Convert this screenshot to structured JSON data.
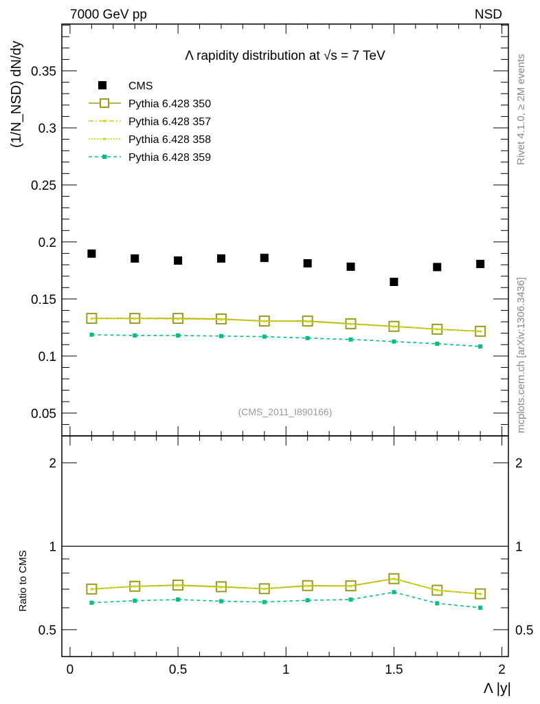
{
  "header": {
    "left": "7000 GeV pp",
    "right": "NSD"
  },
  "side_text": {
    "top": "Rivet 4.1.0, ≥ 2M events",
    "bottom": "mcplots.cern.ch [arXiv:1306.3436]"
  },
  "chart_data": {
    "type": "scatter",
    "title": "Λ rapidity distribution at √s = 7 TeV",
    "analysis_label": "(CMS_2011_I890166)",
    "xlabel": "Λ |y|",
    "ylabel": "(1/N_NSD) dN/dy",
    "ratio_ylabel": "Ratio to CMS",
    "xlim": [
      -0.038,
      2.03
    ],
    "ylim": [
      0.03,
      0.391
    ],
    "ratio_ylim": [
      0.4,
      2.5
    ],
    "ratio_scale": "log",
    "legend_position": "top-left",
    "x_ticks": [
      "0",
      "0.5",
      "1",
      "1.5",
      "2"
    ],
    "y_ticks": [
      "0.05",
      "0.1",
      "0.15",
      "0.2",
      "0.25",
      "0.3",
      "0.35"
    ],
    "ratio_ticks": [
      "0.5",
      "1",
      "2"
    ],
    "x": [
      0.1,
      0.3,
      0.5,
      0.7,
      0.9,
      1.1,
      1.3,
      1.5,
      1.7,
      1.9
    ],
    "series": [
      {
        "name": "CMS",
        "color": "#000000",
        "style": "data",
        "values": [
          0.1898,
          0.1855,
          0.1837,
          0.1855,
          0.186,
          0.1813,
          0.1783,
          0.165,
          0.178,
          0.1807
        ]
      },
      {
        "name": "Pythia 6.428 350",
        "color": "#9a9a1e",
        "style": "solid-open-square",
        "values": [
          0.133,
          0.133,
          0.133,
          0.1325,
          0.1307,
          0.1307,
          0.1283,
          0.126,
          0.1235,
          0.1217
        ]
      },
      {
        "name": "Pythia 6.428 357",
        "color": "#e0c400",
        "style": "dashdot",
        "values": [
          0.1328,
          0.1328,
          0.1325,
          0.132,
          0.1305,
          0.1302,
          0.128,
          0.1258,
          0.1235,
          0.1215
        ]
      },
      {
        "name": "Pythia 6.428 358",
        "color": "#c8e000",
        "style": "dotted",
        "values": [
          0.1328,
          0.1328,
          0.1326,
          0.1322,
          0.1305,
          0.1304,
          0.128,
          0.1258,
          0.1234,
          0.1216
        ]
      },
      {
        "name": "Pythia 6.428 359",
        "color": "#00c080",
        "style": "dashed",
        "values": [
          0.1187,
          0.118,
          0.118,
          0.1175,
          0.117,
          0.1157,
          0.1145,
          0.1127,
          0.1108,
          0.1084
        ]
      }
    ]
  }
}
